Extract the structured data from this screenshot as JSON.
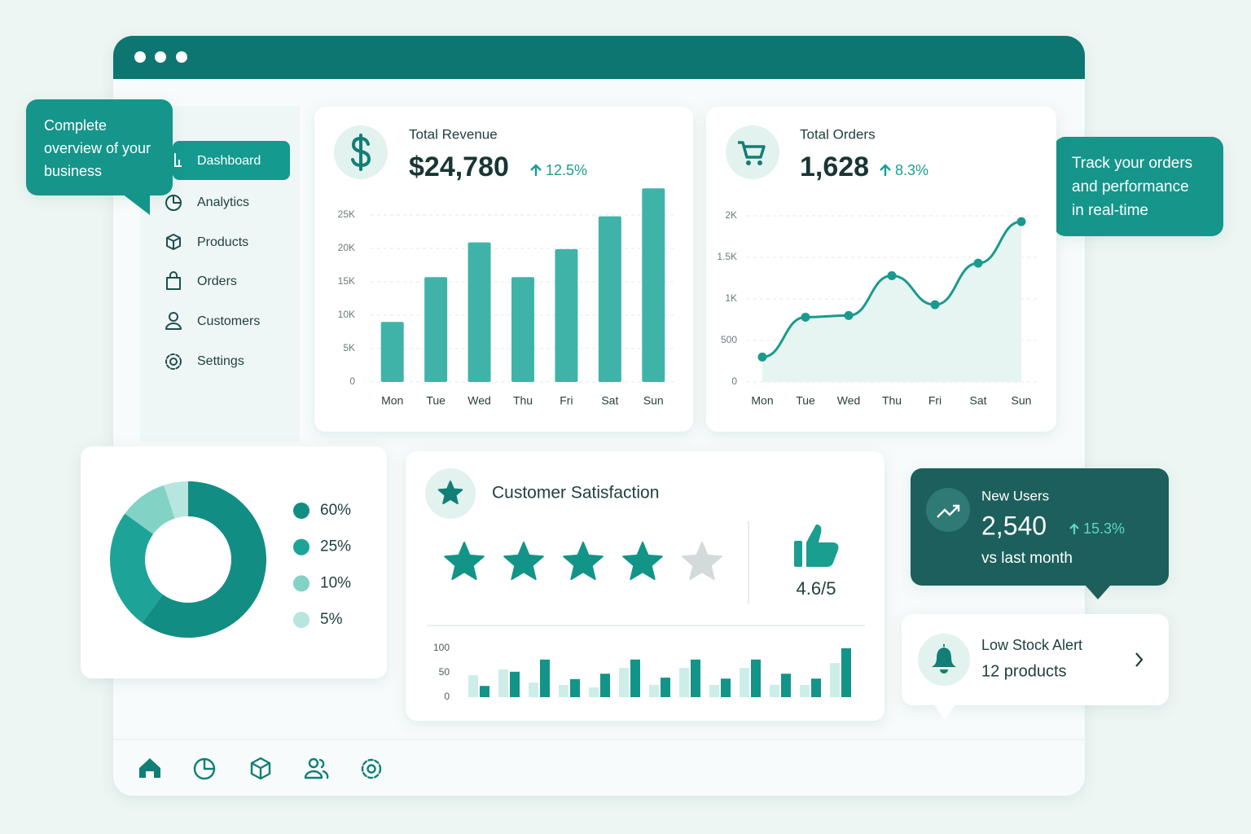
{
  "callout_left": [
    "Complete",
    "overview of your",
    "business"
  ],
  "callout_right": [
    "Track your orders",
    "and performance",
    "in real-time"
  ],
  "sidebar": [
    "Dashboard",
    "Analytics",
    "Products",
    "Orders",
    "Customers",
    "Settings"
  ],
  "revenue": {
    "title": "Total Revenue",
    "value": "$24,780",
    "change": "12.5%",
    "chart": {
      "type": "bar",
      "categories": [
        "Mon",
        "Tue",
        "Wed",
        "Thu",
        "Fri",
        "Sat",
        "Sun"
      ],
      "values": [
        9000,
        15700,
        20900,
        15700,
        19900,
        24800,
        29000
      ],
      "color": "#40b3a9",
      "ylim": [
        0,
        30000
      ],
      "yticks": [
        0,
        {
          "value": 5000,
          "label": "5K"
        },
        {
          "value": 10000,
          "label": "10K"
        },
        {
          "value": 15000,
          "label": "15K"
        },
        {
          "value": 20000,
          "label": "20K"
        },
        {
          "value": 25000,
          "label": "25K"
        }
      ],
      "grid": true
    }
  },
  "orders": {
    "title": "Total Orders",
    "value": "1,628",
    "change": "8.3%",
    "chart": {
      "type": "line",
      "categories": [
        "Mon",
        "Tue",
        "Wed",
        "Thu",
        "Fri",
        "Sat",
        "Sun"
      ],
      "values": [
        300,
        780,
        800,
        1280,
        930,
        1430,
        1930
      ],
      "color": "#1a9a8e",
      "ylim": [
        0,
        2000
      ],
      "yticks": [
        0,
        500,
        {
          "value": 1000,
          "label": "1K"
        },
        {
          "value": 1500,
          "label": "1.5K"
        },
        {
          "value": 2000,
          "label": "2K"
        }
      ],
      "grid": true
    }
  },
  "distribution": {
    "type": "pie",
    "values": [
      60,
      25,
      10,
      5
    ],
    "value_labels": [
      "60%",
      "25%",
      "10%",
      "5%"
    ],
    "colors": [
      "#128d84",
      "#1ea398",
      "#82d3c6",
      "#b7e6de"
    ]
  },
  "satisfaction": {
    "title": "Customer Satisfaction",
    "rating": "4.6/5",
    "chart": {
      "type": "bar",
      "ylim": [
        0,
        100
      ],
      "yticks": [
        0,
        50,
        100
      ],
      "series": [
        {
          "color": "#cdeee8",
          "values": [
            45,
            57,
            30,
            25,
            20,
            60,
            25,
            60,
            25,
            60,
            25,
            25,
            70
          ]
        },
        {
          "color": "#139488",
          "values": [
            23,
            52,
            77,
            37,
            48,
            77,
            40,
            77,
            38,
            77,
            48,
            38,
            100
          ]
        }
      ]
    }
  },
  "new_users": {
    "title": "New Users",
    "value": "2,540",
    "change": "15.3%",
    "note": "vs last month"
  },
  "low_stock": {
    "title": "Low Stock Alert",
    "value": "12 products"
  }
}
